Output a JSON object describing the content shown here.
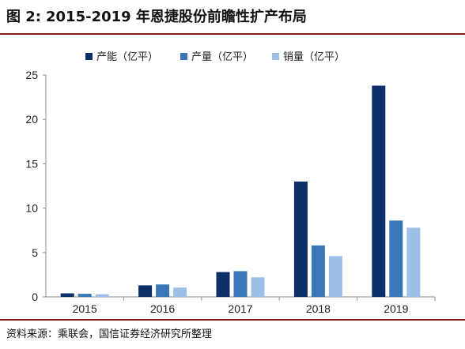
{
  "header": {
    "figure_number": "图 2:",
    "title": "2015-2019 年恩捷股份前瞻性扩产布局"
  },
  "footer": {
    "source": "资料来源：乘联会，国信证券经济研究所整理"
  },
  "chart_data": {
    "type": "bar",
    "title": "",
    "xlabel": "",
    "ylabel": "",
    "categories": [
      "2015",
      "2016",
      "2017",
      "2018",
      "2019"
    ],
    "ylim": [
      0,
      25
    ],
    "yticks": [
      0,
      5,
      10,
      15,
      20,
      25
    ],
    "grid": false,
    "legend_position": "top",
    "series": [
      {
        "name": "产能（亿平）",
        "color": "#0b2f67",
        "values": [
          0.4,
          1.3,
          2.8,
          13.0,
          23.8
        ]
      },
      {
        "name": "产量（亿平）",
        "color": "#3a77b7",
        "values": [
          0.35,
          1.4,
          2.9,
          5.8,
          8.6
        ]
      },
      {
        "name": "销量（亿平）",
        "color": "#9dc1e6",
        "values": [
          0.3,
          1.05,
          2.2,
          4.6,
          7.8
        ]
      }
    ]
  }
}
